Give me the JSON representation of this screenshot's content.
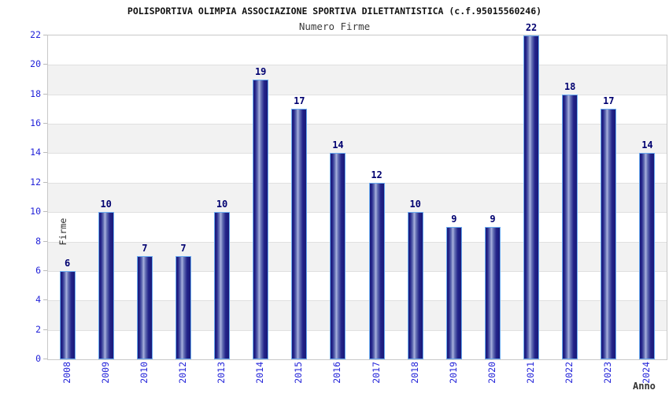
{
  "chart_data": {
    "type": "bar",
    "title": "POLISPORTIVA OLIMPIA ASSOCIAZIONE SPORTIVA DILETTANTISTICA (c.f.95015560246)",
    "subtitle": "Numero Firme",
    "xlabel": "Anno",
    "ylabel": "Firme",
    "categories": [
      "2008",
      "2009",
      "2010",
      "2012",
      "2013",
      "2014",
      "2015",
      "2016",
      "2017",
      "2018",
      "2019",
      "2020",
      "2021",
      "2022",
      "2023",
      "2024"
    ],
    "values": [
      6,
      10,
      7,
      7,
      10,
      19,
      17,
      14,
      12,
      10,
      9,
      9,
      22,
      18,
      17,
      14
    ],
    "ylim": [
      0,
      22
    ],
    "ytick_step": 2,
    "grid": true,
    "background_bands": "alternating white and light gray, 2-unit tall, white at top",
    "legend": "none",
    "colors": {
      "tick_label": "#2424d9",
      "value_label": "#000070",
      "axis_title": "#333333",
      "band_gray": "#f2f2f2",
      "grid_line": "#e0e0e0",
      "plot_border": "#c8c8c8",
      "bar_dark": "#1a1a78",
      "bar_highlight": "#aab2de",
      "bar_edge_light": "#6aabf0"
    }
  }
}
